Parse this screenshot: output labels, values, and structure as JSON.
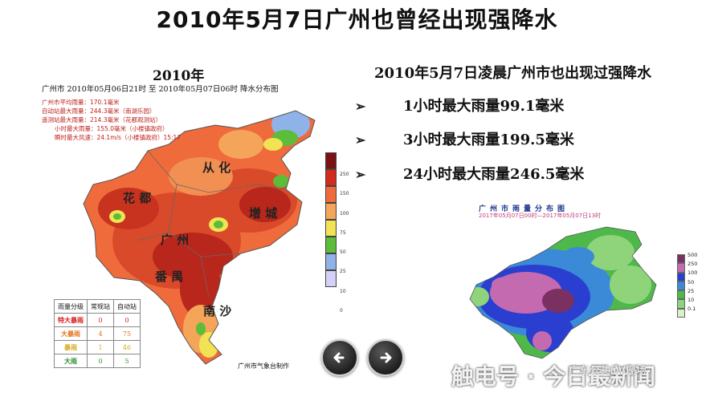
{
  "title": "2010年5月7日广州也曾经出现强降水",
  "left": {
    "year": "2010年",
    "subtitle": "广州市  2010年05月06日21时 至  2010年05月07日06时  降水分布图",
    "stats": [
      "广州市平均雨量：170.1毫米",
      "自动站最大雨量：244.3毫米（南湖乐园）",
      "遥测站最大雨量：214.3毫米（花都观测站）",
      "小时最大雨量：155.0毫米（小楼镇政府）",
      "瞬时最大风速：24.1m/s（小楼镇政府）15:17"
    ],
    "regions": [
      "从 化",
      "花 都",
      "增 城",
      "广 州",
      "番 禺",
      "南 沙"
    ],
    "legend": {
      "labels": [
        "250",
        "150",
        "100",
        "75",
        "50",
        "25",
        "10",
        "0"
      ],
      "colors": [
        "#7a1414",
        "#d42b1f",
        "#ef6b3b",
        "#f5a55a",
        "#f1e353",
        "#5bbd3a",
        "#8fb2e8",
        "#d5d0f5"
      ]
    },
    "table": {
      "headers": [
        "雨量分级",
        "常规站",
        "自动站"
      ],
      "rows": [
        {
          "grade": "特大暴雨",
          "regular": "0",
          "auto": "0",
          "color": "#d41c1c"
        },
        {
          "grade": "大暴雨",
          "regular": "4",
          "auto": "75",
          "color": "#e5731d"
        },
        {
          "grade": "暴雨",
          "regular": "1",
          "auto": "46",
          "color": "#d9a820"
        },
        {
          "grade": "大雨",
          "regular": "0",
          "auto": "5",
          "color": "#2e8b2e"
        }
      ]
    },
    "source": "广州市气象台制作"
  },
  "right": {
    "heading": "2010年5月7日凌晨广州市也出现过强降水",
    "bullets": [
      {
        "mark": "➢",
        "text": "1小时最大雨量99.1毫米"
      },
      {
        "mark": "➢",
        "text": "3小时最大雨量199.5毫米"
      },
      {
        "mark": "➢",
        "text": "24小时最大雨量246.5毫米"
      }
    ],
    "map_title": "广州市雨量分布图",
    "map_subtitle": "2017年05月07日00时—2017年05月07日13时",
    "legend": {
      "labels": [
        "500",
        "250",
        "100",
        "50",
        "25",
        "10",
        "0.1"
      ],
      "colors": [
        "#7a3060",
        "#c46ab0",
        "#2a3fd0",
        "#3a8ad8",
        "#4fb84a",
        "#8fd47a",
        "#d9f0c8"
      ]
    }
  },
  "nav": {
    "prev_icon": "arrow-left-icon",
    "next_icon": "arrow-right-icon"
  },
  "watermark": {
    "big": "触电号 · 今日最新闻",
    "small": "广东公共DV现场"
  }
}
